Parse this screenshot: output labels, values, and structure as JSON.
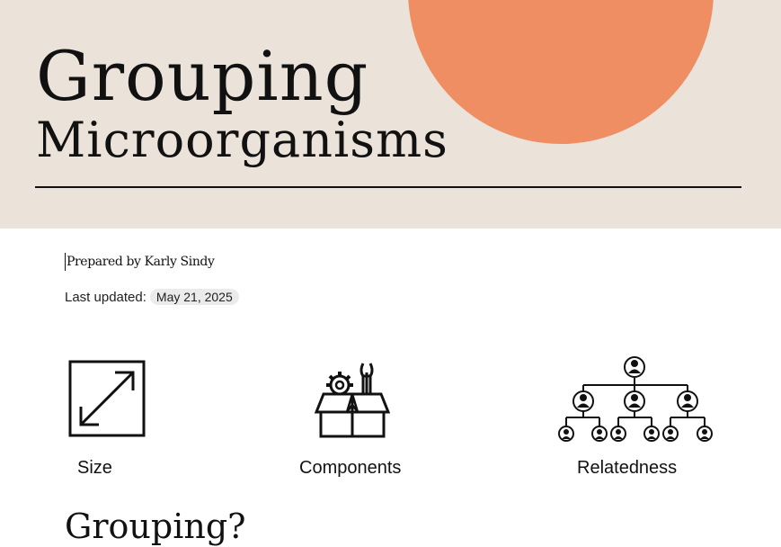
{
  "hero": {
    "title_line1": "Grouping",
    "title_line2": "Microorganisms",
    "accent_color": "#ef8e62",
    "background_color": "#ebe2da"
  },
  "meta": {
    "prepared_by": "Prepared by Karly Sindy",
    "last_updated_label": "Last updated:",
    "last_updated_date": "May 21, 2025"
  },
  "features": [
    {
      "label": "Size",
      "icon": "resize-arrows-icon"
    },
    {
      "label": "Components",
      "icon": "toolbox-icon"
    },
    {
      "label": "Relatedness",
      "icon": "hierarchy-tree-icon"
    }
  ],
  "section_heading": "Grouping?"
}
